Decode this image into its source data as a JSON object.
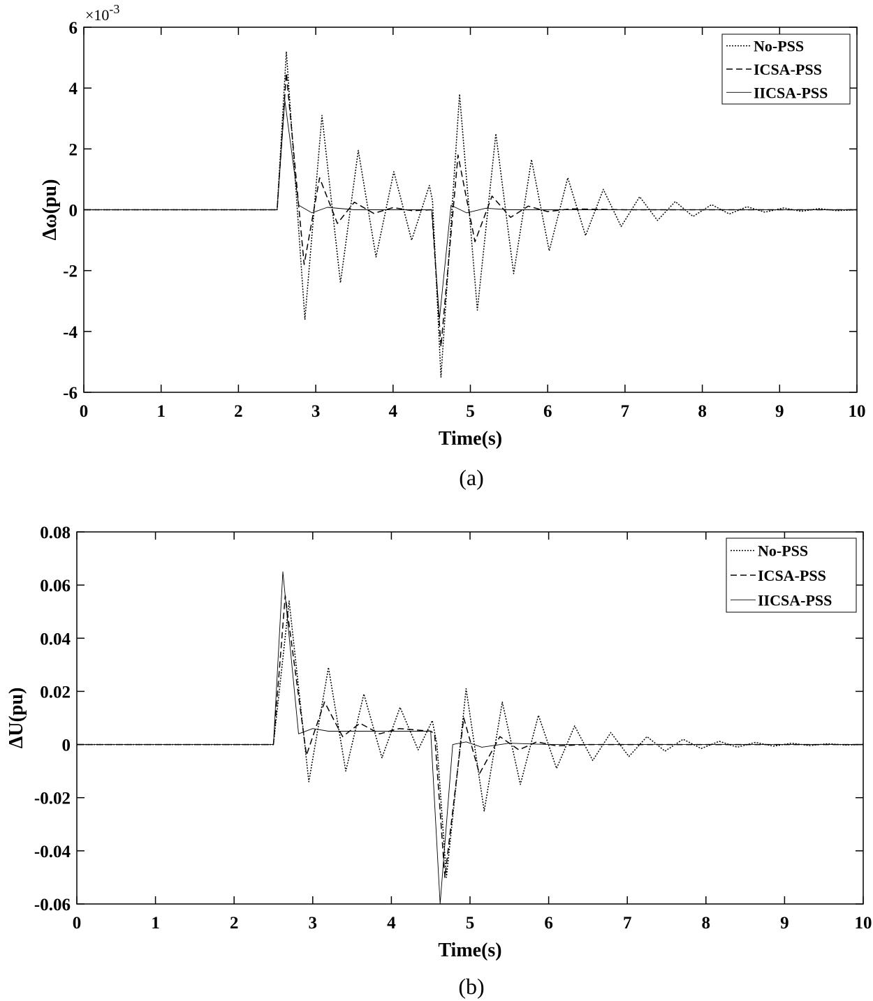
{
  "chart_data": [
    {
      "type": "line",
      "caption": "(a)",
      "xlabel": "Time(s)",
      "ylabel": "Δω(pu)",
      "y_multiplier": "×10",
      "y_exponent": "-3",
      "xlim": [
        0,
        10
      ],
      "ylim": [
        -6,
        6
      ],
      "xticks": [
        0,
        1,
        2,
        3,
        4,
        5,
        6,
        7,
        8,
        9,
        10
      ],
      "yticks": [
        -6,
        -4,
        -2,
        0,
        2,
        4,
        6
      ],
      "ytick_labels": [
        "-6",
        "-4",
        "-2",
        "0",
        "2",
        "4",
        "6"
      ],
      "grid": false,
      "legend_position": "top-right",
      "series": [
        {
          "name": "No-PSS",
          "style": "dotted",
          "x": [
            0,
            2.5,
            2.62,
            2.86,
            3.08,
            3.32,
            3.55,
            3.78,
            4.01,
            4.24,
            4.47,
            4.51,
            4.62,
            4.86,
            5.09,
            5.33,
            5.56,
            5.79,
            6.02,
            6.26,
            6.49,
            6.72,
            6.95,
            7.19,
            7.42,
            7.65,
            7.88,
            8.12,
            8.35,
            8.58,
            8.81,
            9.05,
            9.28,
            9.51,
            9.74,
            10
          ],
          "values": [
            0,
            0,
            5.2,
            -3.6,
            3.1,
            -2.4,
            1.95,
            -1.55,
            1.25,
            -1.0,
            0.8,
            0.3,
            -5.5,
            3.8,
            -3.3,
            2.5,
            -2.1,
            1.65,
            -1.35,
            1.05,
            -0.85,
            0.67,
            -0.55,
            0.43,
            -0.35,
            0.27,
            -0.22,
            0.17,
            -0.14,
            0.1,
            -0.08,
            0.06,
            -0.05,
            0.04,
            -0.03,
            0
          ]
        },
        {
          "name": "ICSA-PSS",
          "style": "dashed",
          "x": [
            0,
            2.5,
            2.62,
            2.85,
            3.05,
            3.28,
            3.5,
            3.75,
            4.0,
            4.25,
            4.5,
            4.62,
            4.84,
            5.06,
            5.28,
            5.52,
            5.75,
            6.0,
            6.3,
            7.0,
            10
          ],
          "values": [
            0,
            0,
            4.5,
            -1.8,
            1.05,
            -0.45,
            0.25,
            -0.12,
            0.07,
            -0.03,
            0.0,
            -4.5,
            1.8,
            -1.05,
            0.45,
            -0.25,
            0.12,
            -0.06,
            0.03,
            0,
            0
          ]
        },
        {
          "name": "IICSA-PSS",
          "style": "solid",
          "x": [
            0,
            2.5,
            2.6,
            2.78,
            2.95,
            3.15,
            3.5,
            4.5,
            4.6,
            4.75,
            4.95,
            5.2,
            5.5,
            10
          ],
          "values": [
            0,
            0,
            3.6,
            0.15,
            -0.1,
            0.08,
            0.0,
            0.0,
            -3.6,
            0.15,
            -0.1,
            0.05,
            0.0,
            0
          ]
        }
      ]
    },
    {
      "type": "line",
      "caption": "(b)",
      "xlabel": "Time(s)",
      "ylabel": "ΔU(pu)",
      "xlim": [
        0,
        10
      ],
      "ylim": [
        -0.06,
        0.08
      ],
      "xticks": [
        0,
        1,
        2,
        3,
        4,
        5,
        6,
        7,
        8,
        9,
        10
      ],
      "yticks": [
        -0.06,
        -0.04,
        -0.02,
        0,
        0.02,
        0.04,
        0.06,
        0.08
      ],
      "ytick_labels": [
        "-0.06",
        "-0.04",
        "-0.02",
        "0",
        "0.02",
        "0.04",
        "0.06",
        "0.08"
      ],
      "grid": false,
      "legend_position": "top-right",
      "series": [
        {
          "name": "No-PSS",
          "style": "dotted",
          "x": [
            0,
            2.5,
            2.7,
            2.95,
            3.2,
            3.42,
            3.65,
            3.88,
            4.11,
            4.34,
            4.52,
            4.58,
            4.7,
            4.95,
            5.18,
            5.41,
            5.64,
            5.87,
            6.1,
            6.33,
            6.56,
            6.79,
            7.02,
            7.25,
            7.48,
            7.71,
            7.94,
            8.17,
            8.4,
            8.63,
            8.86,
            9.09,
            9.32,
            9.55,
            9.78,
            10
          ],
          "values": [
            0,
            0,
            0.054,
            -0.014,
            0.029,
            -0.01,
            0.019,
            -0.005,
            0.014,
            -0.002,
            0.009,
            0.0,
            -0.05,
            0.021,
            -0.025,
            0.016,
            -0.015,
            0.011,
            -0.009,
            0.007,
            -0.006,
            0.0045,
            -0.0045,
            0.003,
            -0.0025,
            0.002,
            -0.0015,
            0.0012,
            -0.001,
            0.0008,
            -0.0006,
            0.0005,
            -0.0004,
            0.0003,
            -0.0002,
            0
          ]
        },
        {
          "name": "ICSA-PSS",
          "style": "dashed",
          "x": [
            0,
            2.5,
            2.65,
            2.92,
            3.15,
            3.38,
            3.6,
            3.85,
            4.1,
            4.5,
            4.55,
            4.68,
            4.92,
            5.12,
            5.38,
            5.62,
            5.85,
            6.1,
            6.5,
            10
          ],
          "values": [
            0,
            0,
            0.056,
            -0.004,
            0.016,
            0.003,
            0.008,
            0.004,
            0.006,
            0.005,
            0.004,
            -0.05,
            0.01,
            -0.011,
            0.003,
            -0.002,
            0.001,
            -0.0005,
            0,
            0
          ]
        },
        {
          "name": "IICSA-PSS",
          "style": "solid",
          "x": [
            0,
            2.5,
            2.62,
            2.82,
            3.0,
            3.2,
            3.5,
            4.5,
            4.62,
            4.78,
            4.95,
            5.15,
            5.5,
            6.0,
            7.0,
            10
          ],
          "values": [
            0,
            0,
            0.065,
            0.004,
            0.006,
            0.005,
            0.005,
            0.005,
            -0.06,
            0.0,
            0.001,
            -0.001,
            0.0005,
            0.0,
            0,
            0
          ]
        }
      ]
    }
  ]
}
